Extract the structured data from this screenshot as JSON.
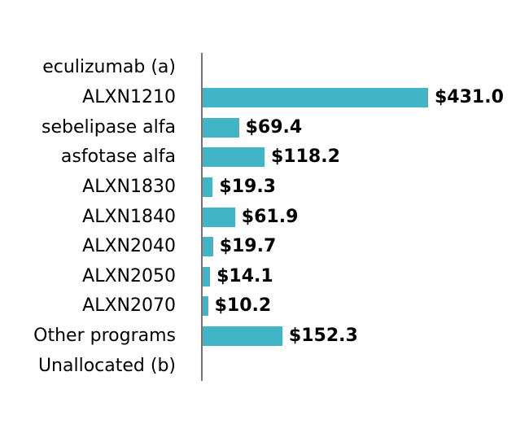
{
  "chart_data": {
    "type": "bar",
    "orientation": "horizontal",
    "title": "",
    "xlabel": "",
    "ylabel": "",
    "grid": false,
    "legend": "none",
    "axis_line_color": "#737373",
    "bar_color": "#41b5c5",
    "text_color": "#000000",
    "value_prefix": "$",
    "xlim": [
      0,
      600
    ],
    "categories": [
      "eculizumab (a)",
      "ALXN1210",
      "sebelipase alfa",
      "asfotase alfa",
      "ALXN1830",
      "ALXN1840",
      "ALXN2040",
      "ALXN2050",
      "ALXN2070",
      "Other programs",
      "Unallocated (b)"
    ],
    "values": [
      null,
      431.0,
      69.4,
      118.2,
      19.3,
      61.9,
      19.7,
      14.1,
      10.2,
      152.3,
      null
    ],
    "value_labels": [
      "",
      "$431.0",
      "$69.4",
      "$118.2",
      "$19.3",
      "$61.9",
      "$19.7",
      "$14.1",
      "$10.2",
      "$152.3",
      ""
    ]
  }
}
